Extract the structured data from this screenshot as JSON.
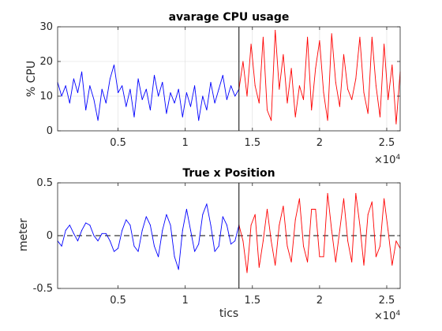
{
  "chart_data": [
    {
      "type": "line",
      "title": "avarage CPU usage",
      "ylabel": "% CPU",
      "xlabel": "",
      "xlim": [
        500,
        26000
      ],
      "ylim": [
        0,
        30
      ],
      "x_ticks": [
        0.5,
        1,
        1.5,
        2,
        2.5
      ],
      "x_tick_labels": [
        "0.5",
        "1",
        "1.5",
        "2",
        "2.5"
      ],
      "x_tick_exponent": "×10",
      "x_tick_exponent_power": "4",
      "y_ticks": [
        0,
        10,
        20,
        30
      ],
      "y_tick_labels": [
        "0",
        "10",
        "20",
        "30"
      ],
      "grid": true,
      "split_x": 14000,
      "colors": {
        "before": "#0000ff",
        "after": "#ff0000",
        "split": "#000000"
      },
      "series": [
        {
          "segment": "before",
          "x": [
            500,
            800,
            1100,
            1400,
            1700,
            2000,
            2300,
            2600,
            2900,
            3200,
            3500,
            3800,
            4100,
            4400,
            4700,
            5000,
            5300,
            5600,
            5900,
            6200,
            6500,
            6800,
            7100,
            7400,
            7700,
            8000,
            8300,
            8600,
            8900,
            9200,
            9500,
            9800,
            10100,
            10400,
            10700,
            11000,
            11300,
            11600,
            11900,
            12200,
            12500,
            12800,
            13100,
            13400,
            13700,
            14000
          ],
          "y": [
            14,
            10,
            13,
            8,
            15,
            11,
            17,
            6,
            13,
            9,
            3,
            12,
            8,
            15,
            19,
            11,
            13,
            7,
            12,
            4,
            15,
            9,
            12,
            6,
            16,
            10,
            14,
            5,
            11,
            8,
            12,
            4,
            11,
            7,
            13,
            3,
            10,
            6,
            14,
            8,
            12,
            16,
            9,
            13,
            10,
            12
          ]
        },
        {
          "segment": "after",
          "x": [
            14000,
            14300,
            14600,
            14900,
            15200,
            15500,
            15800,
            16100,
            16400,
            16700,
            17000,
            17300,
            17600,
            17900,
            18200,
            18500,
            18800,
            19100,
            19400,
            19700,
            20000,
            20300,
            20600,
            20900,
            21200,
            21500,
            21800,
            22100,
            22400,
            22700,
            23000,
            23300,
            23600,
            23900,
            24200,
            24500,
            24800,
            25100,
            25400,
            25700,
            26000
          ],
          "y": [
            12,
            20,
            10,
            25,
            13,
            8,
            27,
            6,
            3,
            29,
            12,
            22,
            8,
            18,
            4,
            13,
            9,
            27,
            6,
            18,
            26,
            11,
            3,
            28,
            14,
            7,
            22,
            12,
            9,
            15,
            27,
            11,
            5,
            27,
            13,
            4,
            25,
            9,
            19,
            2,
            17
          ]
        }
      ]
    },
    {
      "type": "line",
      "title": "True x Position",
      "ylabel": "meter",
      "xlabel": "tics",
      "xlim": [
        500,
        26000
      ],
      "ylim": [
        -0.5,
        0.5
      ],
      "x_ticks": [
        0.5,
        1,
        1.5,
        2,
        2.5
      ],
      "x_tick_labels": [
        "0.5",
        "1",
        "1.5",
        "2",
        "2.5"
      ],
      "x_tick_exponent": "×10",
      "x_tick_exponent_power": "4",
      "y_ticks": [
        -0.5,
        0,
        0.5
      ],
      "y_tick_labels": [
        "-0.5",
        "0",
        "0.5"
      ],
      "grid": false,
      "split_x": 14000,
      "zero_line": {
        "y": 0,
        "style": "dashed"
      },
      "colors": {
        "before": "#0000ff",
        "after": "#ff0000",
        "split": "#000000",
        "zero": "#000000"
      },
      "series": [
        {
          "segment": "before",
          "x": [
            500,
            800,
            1100,
            1400,
            1700,
            2000,
            2300,
            2600,
            2900,
            3200,
            3500,
            3800,
            4100,
            4400,
            4700,
            5000,
            5300,
            5600,
            5900,
            6200,
            6500,
            6800,
            7100,
            7400,
            7700,
            8000,
            8300,
            8600,
            8900,
            9200,
            9500,
            9800,
            10100,
            10400,
            10700,
            11000,
            11300,
            11600,
            11900,
            12200,
            12500,
            12800,
            13100,
            13400,
            13700,
            14000
          ],
          "y": [
            -0.05,
            -0.1,
            0.05,
            0.1,
            0.02,
            -0.05,
            0.05,
            0.12,
            0.1,
            0,
            -0.05,
            0.02,
            0.02,
            -0.05,
            -0.15,
            -0.12,
            0.05,
            0.15,
            0.1,
            -0.1,
            -0.15,
            0.05,
            0.18,
            0.1,
            -0.1,
            -0.2,
            0.05,
            0.2,
            0.1,
            -0.2,
            -0.32,
            0.05,
            0.25,
            0.05,
            -0.15,
            -0.08,
            0.2,
            0.3,
            0.1,
            -0.15,
            -0.1,
            0.18,
            0.1,
            -0.08,
            -0.05,
            0.1
          ]
        },
        {
          "segment": "after",
          "x": [
            14000,
            14300,
            14600,
            14900,
            15200,
            15500,
            15800,
            16100,
            16400,
            16700,
            17000,
            17300,
            17600,
            17900,
            18200,
            18500,
            18800,
            19100,
            19400,
            19700,
            20000,
            20300,
            20600,
            20900,
            21200,
            21500,
            21800,
            22100,
            22400,
            22700,
            23000,
            23300,
            23600,
            23900,
            24200,
            24500,
            24800,
            25100,
            25400,
            25700,
            26000
          ],
          "y": [
            0.1,
            -0.05,
            -0.35,
            0.1,
            0.2,
            -0.3,
            -0.05,
            0.25,
            -0.05,
            -0.28,
            0.1,
            0.28,
            -0.1,
            -0.25,
            0.15,
            0.35,
            -0.1,
            -0.25,
            0.25,
            0.25,
            -0.2,
            -0.2,
            0.4,
            0.05,
            -0.25,
            0.05,
            0.35,
            -0.05,
            -0.25,
            0.4,
            0.1,
            -0.28,
            0.2,
            0.32,
            -0.2,
            -0.1,
            0.35,
            0.05,
            -0.28,
            -0.05,
            -0.12
          ]
        }
      ]
    }
  ]
}
